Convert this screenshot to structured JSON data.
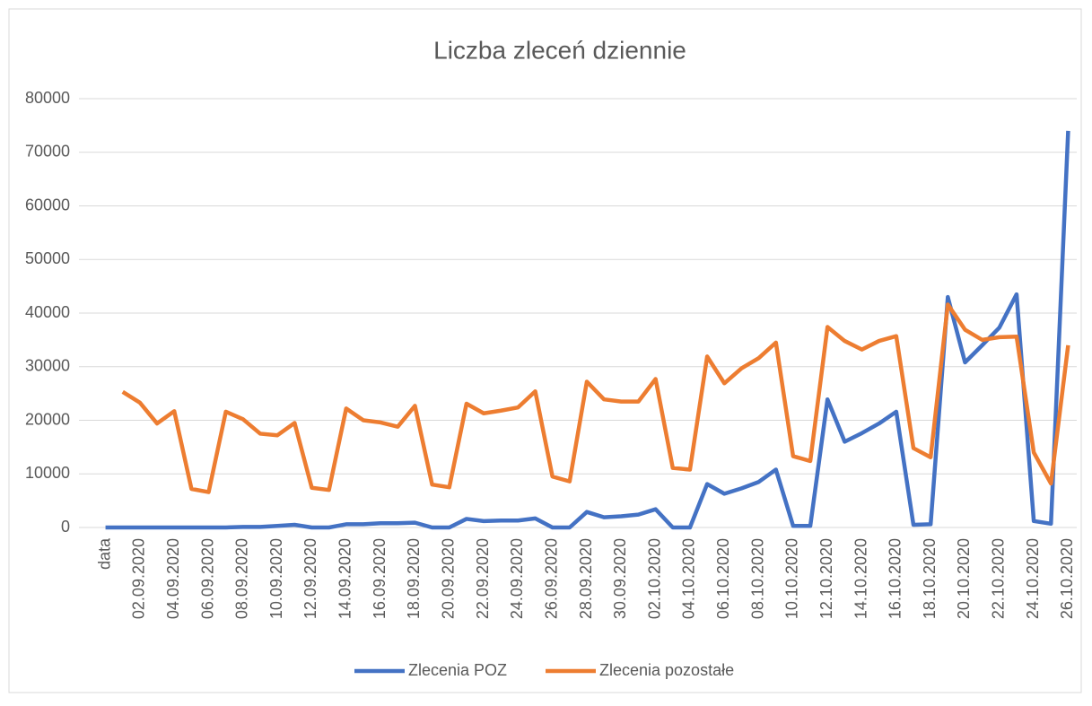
{
  "chart_data": {
    "type": "line",
    "title": "Liczba zleceń dziennie",
    "categories": [
      "data",
      null,
      "02.09.2020",
      null,
      "04.09.2020",
      null,
      "06.09.2020",
      null,
      "08.09.2020",
      null,
      "10.09.2020",
      null,
      "12.09.2020",
      null,
      "14.09.2020",
      null,
      "16.09.2020",
      null,
      "18.09.2020",
      null,
      "20.09.2020",
      null,
      "22.09.2020",
      null,
      "24.09.2020",
      null,
      "26.09.2020",
      null,
      "28.09.2020",
      null,
      "30.09.2020",
      null,
      "02.10.2020",
      null,
      "04.10.2020",
      null,
      "06.10.2020",
      null,
      "08.10.2020",
      null,
      "10.10.2020",
      null,
      "12.10.2020",
      null,
      "14.10.2020",
      null,
      "16.10.2020",
      null,
      "18.10.2020",
      null,
      "20.10.2020",
      null,
      "22.10.2020",
      null,
      "24.10.2020",
      null,
      "26.10.2020"
    ],
    "series": [
      {
        "name": "Zlecenia POZ",
        "color": "#4472c4",
        "values": [
          0,
          0,
          0,
          0,
          0,
          0,
          0,
          0,
          100,
          100,
          300,
          500,
          0,
          0,
          600,
          600,
          800,
          800,
          900,
          0,
          0,
          1600,
          1200,
          1300,
          1300,
          1700,
          0,
          0,
          2900,
          1900,
          2100,
          2400,
          3400,
          0,
          0,
          8100,
          6300,
          7300,
          8500,
          10800,
          300,
          300,
          23900,
          16000,
          17600,
          19400,
          21600,
          500,
          600,
          43000,
          30800,
          34000,
          37300,
          43500,
          1200,
          700,
          74000
        ]
      },
      {
        "name": "Zlecenia pozostałe",
        "color": "#ed7d31",
        "values": [
          null,
          25300,
          23300,
          19400,
          21700,
          7200,
          6600,
          21600,
          20200,
          17500,
          17200,
          19500,
          7400,
          7000,
          22200,
          20000,
          19600,
          18800,
          22700,
          8000,
          7500,
          23100,
          21300,
          21800,
          22400,
          25400,
          9500,
          8600,
          27200,
          23900,
          23500,
          23500,
          27700,
          11100,
          10800,
          31900,
          26900,
          29700,
          31600,
          34500,
          13300,
          12400,
          37400,
          34800,
          33200,
          34800,
          35700,
          14800,
          13100,
          41600,
          36900,
          35000,
          35500,
          35600,
          14000,
          8200,
          34000
        ]
      }
    ],
    "ylim": [
      0,
      80000
    ],
    "yticks": [
      0,
      10000,
      20000,
      30000,
      40000,
      50000,
      60000,
      70000,
      80000
    ],
    "grid": true,
    "legend": "bottom"
  }
}
